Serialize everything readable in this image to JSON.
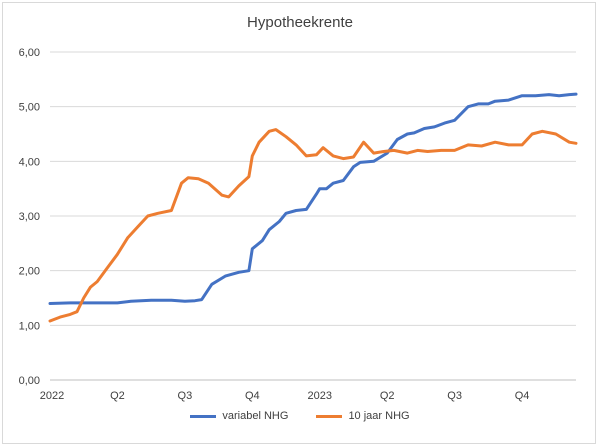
{
  "chart_data": {
    "type": "line",
    "title": "Hypotheekrente",
    "xlabel": "",
    "ylabel": "",
    "ylim": [
      0,
      6
    ],
    "yticks": [
      "0,00",
      "1,00",
      "2,00",
      "3,00",
      "4,00",
      "5,00",
      "6,00"
    ],
    "xticks": [
      "2022",
      "Q2",
      "Q3",
      "Q4",
      "2023",
      "Q2",
      "Q3",
      "Q4"
    ],
    "xlim": [
      0,
      7.8
    ],
    "grid": true,
    "legend": "bottom",
    "series": [
      {
        "name": "variabel NHG",
        "color": "#4472c4",
        "x": [
          0,
          0.3,
          0.6,
          0.9,
          1.0,
          1.2,
          1.5,
          1.8,
          2.0,
          2.15,
          2.25,
          2.4,
          2.6,
          2.8,
          2.95,
          3.0,
          3.15,
          3.25,
          3.4,
          3.5,
          3.65,
          3.8,
          3.95,
          4.0,
          4.1,
          4.2,
          4.35,
          4.5,
          4.6,
          4.8,
          5.0,
          5.15,
          5.3,
          5.4,
          5.55,
          5.7,
          5.85,
          6.0,
          6.2,
          6.35,
          6.5,
          6.6,
          6.8,
          7.0,
          7.2,
          7.4,
          7.55,
          7.7,
          7.8
        ],
        "y": [
          1.4,
          1.41,
          1.41,
          1.41,
          1.41,
          1.44,
          1.46,
          1.46,
          1.44,
          1.45,
          1.47,
          1.75,
          1.9,
          1.97,
          2.0,
          2.4,
          2.55,
          2.75,
          2.9,
          3.05,
          3.1,
          3.12,
          3.4,
          3.5,
          3.5,
          3.6,
          3.65,
          3.9,
          3.98,
          4.0,
          4.15,
          4.4,
          4.5,
          4.52,
          4.6,
          4.63,
          4.7,
          4.75,
          5.0,
          5.05,
          5.05,
          5.1,
          5.12,
          5.2,
          5.2,
          5.22,
          5.2,
          5.22,
          5.23
        ]
      },
      {
        "name": "10 jaar NHG",
        "color": "#ed7d31",
        "x": [
          0,
          0.15,
          0.3,
          0.4,
          0.5,
          0.6,
          0.7,
          0.85,
          1.0,
          1.15,
          1.3,
          1.45,
          1.6,
          1.8,
          1.95,
          2.05,
          2.2,
          2.35,
          2.55,
          2.65,
          2.8,
          2.95,
          3.0,
          3.1,
          3.25,
          3.35,
          3.5,
          3.65,
          3.8,
          3.95,
          4.05,
          4.2,
          4.35,
          4.5,
          4.65,
          4.8,
          4.95,
          5.1,
          5.3,
          5.45,
          5.6,
          5.8,
          6.0,
          6.2,
          6.4,
          6.6,
          6.8,
          7.0,
          7.15,
          7.3,
          7.5,
          7.7,
          7.8
        ],
        "y": [
          1.08,
          1.15,
          1.2,
          1.25,
          1.5,
          1.7,
          1.8,
          2.05,
          2.3,
          2.6,
          2.8,
          3.0,
          3.05,
          3.1,
          3.6,
          3.7,
          3.68,
          3.6,
          3.38,
          3.35,
          3.55,
          3.72,
          4.1,
          4.35,
          4.55,
          4.58,
          4.45,
          4.3,
          4.1,
          4.12,
          4.25,
          4.1,
          4.05,
          4.08,
          4.35,
          4.15,
          4.18,
          4.2,
          4.15,
          4.2,
          4.18,
          4.2,
          4.2,
          4.3,
          4.28,
          4.35,
          4.3,
          4.3,
          4.5,
          4.55,
          4.5,
          4.35,
          4.33
        ]
      }
    ]
  }
}
